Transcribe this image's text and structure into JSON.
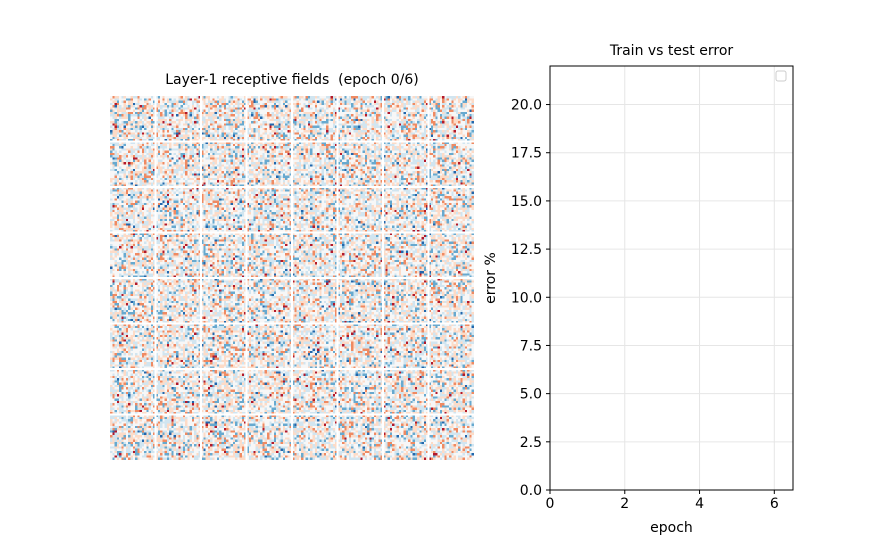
{
  "left_panel": {
    "title": "Layer-1 receptive fields  (epoch 0/6)",
    "grid_rows": 8,
    "grid_cols": 8,
    "tile_pixels": 20,
    "colormap": [
      "#2166ac",
      "#67a9cf",
      "#d1e5f0",
      "#f7f7f7",
      "#fddbc7",
      "#ef8a62",
      "#b2182b"
    ]
  },
  "chart_data": {
    "type": "line",
    "title": "Train vs test error",
    "xlabel": "epoch",
    "ylabel": "error %",
    "xlim": [
      0,
      6.5
    ],
    "ylim": [
      0,
      22
    ],
    "xticks": [
      "0",
      "2",
      "4",
      "6"
    ],
    "yticks": [
      "0.0",
      "2.5",
      "5.0",
      "7.5",
      "10.0",
      "12.5",
      "15.0",
      "17.5",
      "20.0"
    ],
    "grid": true,
    "legend": "top-right",
    "series": []
  }
}
